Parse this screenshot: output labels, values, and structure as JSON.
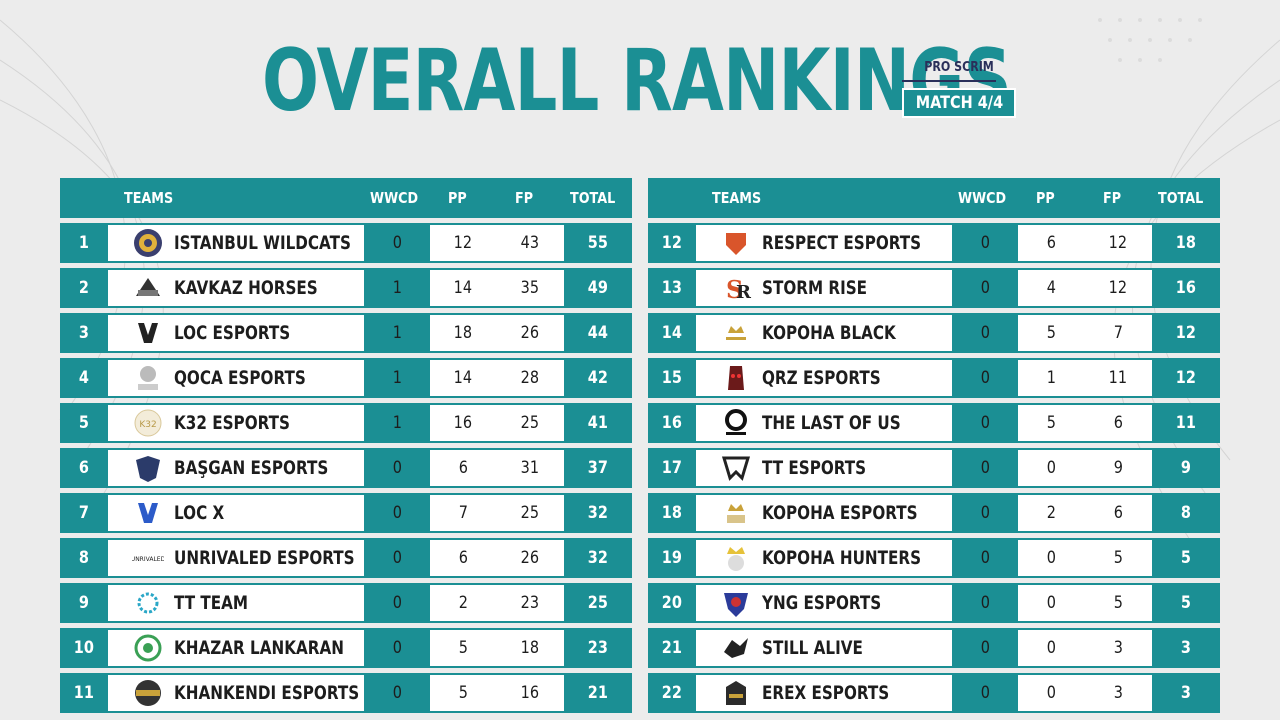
{
  "title": "OVERALL RANKINGS",
  "badge": {
    "top": "PRO SCRIM",
    "bottom": "MATCH 4/4"
  },
  "headers": {
    "teams": "TEAMS",
    "wwcd": "WWCD",
    "pp": "PP",
    "fp": "FP",
    "total": "TOTAL"
  },
  "colors": {
    "accent": "#1b8f94",
    "text": "#1d1d1d",
    "navy": "#2a2f5a",
    "background": "#ececec"
  },
  "left": [
    {
      "rank": "1",
      "name": "ISTANBUL WILDCATS",
      "wwcd": "0",
      "pp": "12",
      "fp": "43",
      "total": "55",
      "logo": "wildcats-logo"
    },
    {
      "rank": "2",
      "name": "KAVKAZ HORSES",
      "wwcd": "1",
      "pp": "14",
      "fp": "35",
      "total": "49",
      "logo": "kavkaz-logo"
    },
    {
      "rank": "3",
      "name": "LOC ESPORTS",
      "wwcd": "1",
      "pp": "18",
      "fp": "26",
      "total": "44",
      "logo": "loc-logo"
    },
    {
      "rank": "4",
      "name": "QOCA ESPORTS",
      "wwcd": "1",
      "pp": "14",
      "fp": "28",
      "total": "42",
      "logo": "qoca-logo"
    },
    {
      "rank": "5",
      "name": "K32 ESPORTS",
      "wwcd": "1",
      "pp": "16",
      "fp": "25",
      "total": "41",
      "logo": "k32-logo"
    },
    {
      "rank": "6",
      "name": "BAŞGAN ESPORTS",
      "wwcd": "0",
      "pp": "6",
      "fp": "31",
      "total": "37",
      "logo": "basgan-logo"
    },
    {
      "rank": "7",
      "name": "LOC X",
      "wwcd": "0",
      "pp": "7",
      "fp": "25",
      "total": "32",
      "logo": "locx-logo"
    },
    {
      "rank": "8",
      "name": "UNRIVALED ESPORTS",
      "wwcd": "0",
      "pp": "6",
      "fp": "26",
      "total": "32",
      "logo": "unrivaled-logo"
    },
    {
      "rank": "9",
      "name": "TT TEAM",
      "wwcd": "0",
      "pp": "2",
      "fp": "23",
      "total": "25",
      "logo": "ttteam-logo"
    },
    {
      "rank": "10",
      "name": "KHAZAR LANKARAN",
      "wwcd": "0",
      "pp": "5",
      "fp": "18",
      "total": "23",
      "logo": "khazar-logo"
    },
    {
      "rank": "11",
      "name": "KHANKENDI ESPORTS",
      "wwcd": "0",
      "pp": "5",
      "fp": "16",
      "total": "21",
      "logo": "khankendi-logo"
    }
  ],
  "right": [
    {
      "rank": "12",
      "name": "RESPECT ESPORTS",
      "wwcd": "0",
      "pp": "6",
      "fp": "12",
      "total": "18",
      "logo": "respect-logo"
    },
    {
      "rank": "13",
      "name": "STORM RISE",
      "wwcd": "0",
      "pp": "4",
      "fp": "12",
      "total": "16",
      "logo": "stormrise-logo"
    },
    {
      "rank": "14",
      "name": "KOPOHA BLACK",
      "wwcd": "0",
      "pp": "5",
      "fp": "7",
      "total": "12",
      "logo": "kopoha-black-logo"
    },
    {
      "rank": "15",
      "name": "QRZ ESPORTS",
      "wwcd": "0",
      "pp": "1",
      "fp": "11",
      "total": "12",
      "logo": "qrz-logo"
    },
    {
      "rank": "16",
      "name": "THE LAST OF US",
      "wwcd": "0",
      "pp": "5",
      "fp": "6",
      "total": "11",
      "logo": "lastofus-logo"
    },
    {
      "rank": "17",
      "name": "TT ESPORTS",
      "wwcd": "0",
      "pp": "0",
      "fp": "9",
      "total": "9",
      "logo": "ttesports-logo"
    },
    {
      "rank": "18",
      "name": "KOPOHA ESPORTS",
      "wwcd": "0",
      "pp": "2",
      "fp": "6",
      "total": "8",
      "logo": "kopoha-esports-logo"
    },
    {
      "rank": "19",
      "name": "KOPOHA HUNTERS",
      "wwcd": "0",
      "pp": "0",
      "fp": "5",
      "total": "5",
      "logo": "kopoha-hunters-logo"
    },
    {
      "rank": "20",
      "name": "YNG ESPORTS",
      "wwcd": "0",
      "pp": "0",
      "fp": "5",
      "total": "5",
      "logo": "yng-logo"
    },
    {
      "rank": "21",
      "name": "STILL ALIVE",
      "wwcd": "0",
      "pp": "0",
      "fp": "3",
      "total": "3",
      "logo": "stillalive-logo"
    },
    {
      "rank": "22",
      "name": "EREX ESPORTS",
      "wwcd": "0",
      "pp": "0",
      "fp": "3",
      "total": "3",
      "logo": "erex-logo"
    }
  ]
}
